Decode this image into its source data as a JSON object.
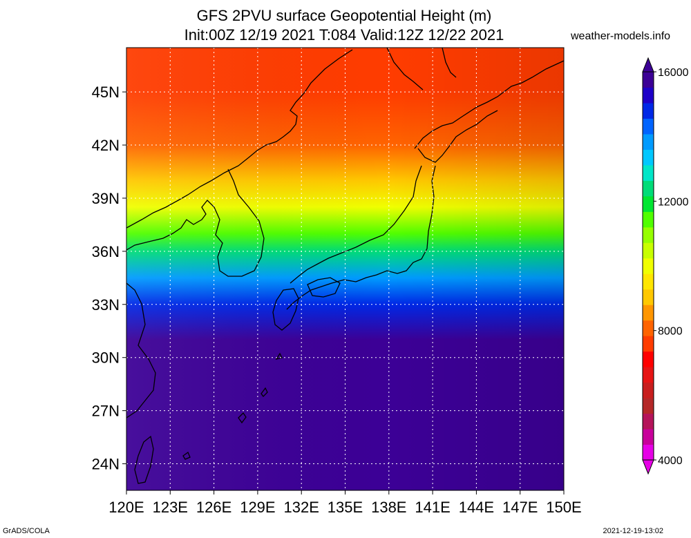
{
  "header": {
    "title_line1": "GFS 2PVU surface Geopotential Height (m)",
    "title_line2": "Init:00Z 12/19 2021 T:084 Valid:12Z 12/22 2021",
    "site": "weather-models.info"
  },
  "footer": {
    "left": "GrADS/COLA",
    "right": "2021-12-19-13:02"
  },
  "map": {
    "lon_range": [
      120,
      150
    ],
    "lat_range": [
      22.5,
      47.5
    ],
    "x_ticks": [
      "120E",
      "123E",
      "126E",
      "129E",
      "132E",
      "135E",
      "138E",
      "141E",
      "144E",
      "147E",
      "150E"
    ],
    "y_ticks": [
      "45N",
      "42N",
      "39N",
      "36N",
      "33N",
      "30N",
      "27N",
      "24N"
    ],
    "grid": true,
    "field_bands": [
      {
        "lat": 47.5,
        "value": 7500
      },
      {
        "lat": 45.0,
        "value": 7800
      },
      {
        "lat": 42.0,
        "value": 8300
      },
      {
        "lat": 40.0,
        "value": 9200
      },
      {
        "lat": 38.5,
        "value": 10200
      },
      {
        "lat": 37.0,
        "value": 11200
      },
      {
        "lat": 36.0,
        "value": 12400
      },
      {
        "lat": 34.5,
        "value": 13600
      },
      {
        "lat": 33.0,
        "value": 14800
      },
      {
        "lat": 31.0,
        "value": 15600
      },
      {
        "lat": 22.5,
        "value": 15800
      }
    ]
  },
  "colorbar": {
    "min": 4000,
    "max": 16000,
    "labels": [
      "16000",
      "12000",
      "8000",
      "4000"
    ],
    "colors": [
      "#e600e6",
      "#c8009b",
      "#b4145a",
      "#b42828",
      "#c81e1e",
      "#e61414",
      "#ff0000",
      "#ff3c00",
      "#ff6400",
      "#ff9600",
      "#ffc800",
      "#ffe600",
      "#f0ff00",
      "#c8ff00",
      "#96ff00",
      "#50ff00",
      "#00e632",
      "#00dc78",
      "#00e6c8",
      "#00c8ff",
      "#009bff",
      "#0064ff",
      "#0028e6",
      "#1e00c8",
      "#3c0096"
    ]
  }
}
